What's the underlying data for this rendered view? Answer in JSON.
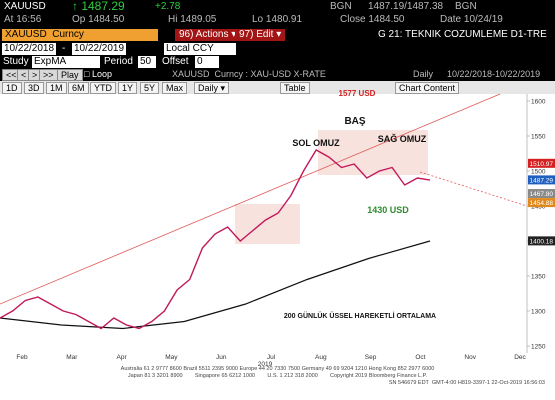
{
  "quote": {
    "ticker": "XAUUSD",
    "last": "↑ 1487.29",
    "change": "+2.78",
    "source": "BGN",
    "bid_ask": "1487.19/1487.38",
    "source2": "BGN"
  },
  "stats": {
    "at": "At 16:56",
    "open": "Op 1484.50",
    "high": "Hi 1489.05",
    "low": "Lo 1480.91",
    "close": "Close 1484.50",
    "date": "Date 10/24/19"
  },
  "toolbar": {
    "security": "XAUUSD  Curncy",
    "actions": "96) Actions ▾",
    "edit": "97) Edit ▾",
    "page": "G 21: TEKNIK COZUMLEME D1-TRE"
  },
  "range": {
    "start": "10/22/2018",
    "separator": "-",
    "end": "10/22/2019",
    "currency": "Local CCY"
  },
  "study": {
    "label": "Study",
    "name": "ExpMA",
    "period_label": "Period",
    "period": 50,
    "offset_label": "Offset",
    "offset": 0
  },
  "playback": {
    "buttons": [
      "<<",
      "<",
      ">",
      ">>"
    ],
    "play": "Play",
    "loop": "Loop",
    "description": "XAUUSD  Curncy : XAU-USD X-RATE",
    "frequency": "Daily",
    "span": "10/22/2018-10/22/2019"
  },
  "tabs": {
    "periods": [
      "1D",
      "3D",
      "1M",
      "6M",
      "YTD",
      "1Y",
      "5Y",
      "Max"
    ],
    "frequency": "Daily ▾",
    "table": "Table",
    "content": "Chart Content"
  },
  "chart": {
    "ylim": [
      1240,
      1610
    ],
    "yticks": [
      1250,
      1300,
      1350,
      1400,
      1450,
      1500,
      1550,
      1600
    ],
    "months": [
      "Feb",
      "Mar",
      "Apr",
      "May",
      "Jun",
      "Jul",
      "Aug",
      "Sep",
      "Oct",
      "Nov",
      "Dec"
    ],
    "year": "2019",
    "price_labels": [
      {
        "value": 1510.97,
        "label": "1510.97",
        "color": "#d42020"
      },
      {
        "value": 1487.29,
        "label": "1487.29",
        "color": "#1f5fbf"
      },
      {
        "value": 1467.8,
        "label": "1467.80",
        "color": "#8a8a8a"
      },
      {
        "value": 1454.88,
        "label": "1454.88",
        "color": "#e08a1e"
      },
      {
        "value": 1400.18,
        "label": "1400.18",
        "color": "#222222"
      }
    ],
    "annotations": [
      {
        "text": "BAŞ",
        "color": "#111111"
      },
      {
        "text": "SOL OMUZ",
        "color": "#111111"
      },
      {
        "text": "SAĞ OMUZ",
        "color": "#111111"
      },
      {
        "text": "1430 USD",
        "color": "#2e8b2e"
      },
      {
        "text": "1577 USD",
        "color": "#d42020"
      },
      {
        "text": "200 GÜNLÜK ÜSSEL HAREKETLİ ORTALAMA",
        "color": "#111111"
      }
    ],
    "close": [
      1290,
      1300,
      1315,
      1320,
      1310,
      1300,
      1295,
      1285,
      1275,
      1290,
      1280,
      1275,
      1285,
      1300,
      1330,
      1345,
      1390,
      1410,
      1420,
      1400,
      1415,
      1430,
      1440,
      1465,
      1500,
      1530,
      1520,
      1505,
      1510,
      1490,
      1500,
      1505,
      1480,
      1490,
      1487
    ],
    "close_color": "#c2185b",
    "ema200": [
      1290,
      1280,
      1275,
      1285,
      1310,
      1345,
      1375,
      1400
    ],
    "ema200_color": "#111111"
  },
  "footer": [
    "Australia 61 2 9777 8600 Brazil 5511 2395 9000 Europe 44 20 7330 7500 Germany 49 69 9204 1210 Hong Kong 852 2977 6000",
    "Japan 81 3 3201 8900        Singapore 65 6212 1000        U.S. 1 212 318 2000        Copyright 2019 Bloomberg Finance L.P.",
    "SN 546679 EDT  GMT-4:00 H819-3397-1 22-Oct-2019 16:56:03"
  ]
}
